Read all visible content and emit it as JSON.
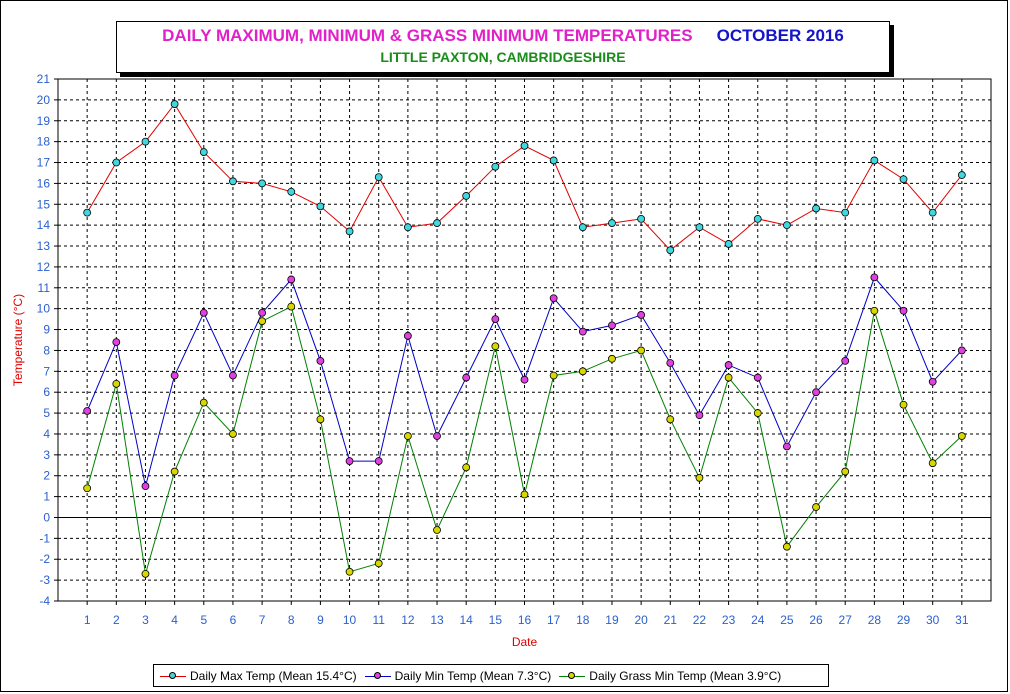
{
  "title": {
    "main": "DAILY MAXIMUM, MINIMUM & GRASS MINIMUM TEMPERATURES",
    "month": "OCTOBER 2016",
    "subtitle": "LITTLE PAXTON, CAMBRIDGESHIRE"
  },
  "colors": {
    "max_line": "#e00000",
    "max_marker": "#40d8e0",
    "min_line": "#0000c8",
    "min_marker": "#e040e0",
    "grass_line": "#008000",
    "grass_marker": "#d8d800",
    "axis_label": "#e00000",
    "tick_label": "#2a5fd0"
  },
  "chart_data": {
    "type": "line",
    "title": "DAILY MAXIMUM, MINIMUM & GRASS MINIMUM TEMPERATURES",
    "xlabel": "Date",
    "ylabel": "Temperature (°C)",
    "ylim": [
      -4,
      21
    ],
    "grid": true,
    "legend_position": "bottom",
    "x": [
      1,
      2,
      3,
      4,
      5,
      6,
      7,
      8,
      9,
      10,
      11,
      12,
      13,
      14,
      15,
      16,
      17,
      18,
      19,
      20,
      21,
      22,
      23,
      24,
      25,
      26,
      27,
      28,
      29,
      30,
      31
    ],
    "series": [
      {
        "name": "Daily Max Temp (Mean 15.4°C)",
        "values": [
          14.6,
          17.0,
          18.0,
          19.8,
          17.5,
          16.1,
          16.0,
          15.6,
          14.9,
          13.7,
          16.3,
          13.9,
          14.1,
          15.4,
          16.8,
          17.8,
          17.1,
          13.9,
          14.1,
          14.3,
          12.8,
          13.9,
          13.1,
          14.3,
          14.0,
          14.8,
          14.6,
          17.1,
          16.2,
          14.6,
          16.4
        ]
      },
      {
        "name": "Daily Min Temp (Mean 7.3°C)",
        "values": [
          5.1,
          8.4,
          1.5,
          6.8,
          9.8,
          6.8,
          9.8,
          11.4,
          7.5,
          2.7,
          2.7,
          8.7,
          3.9,
          6.7,
          9.5,
          6.6,
          10.5,
          8.9,
          9.2,
          9.7,
          7.4,
          4.9,
          7.3,
          6.7,
          3.4,
          6.0,
          7.5,
          11.5,
          9.9,
          6.5,
          8.0
        ]
      },
      {
        "name": "Daily Grass Min Temp (Mean 3.9°C)",
        "values": [
          1.4,
          6.4,
          -2.7,
          2.2,
          5.5,
          4.0,
          9.4,
          10.1,
          4.7,
          -2.6,
          -2.2,
          3.9,
          -0.6,
          2.4,
          8.2,
          1.1,
          6.8,
          7.0,
          7.6,
          8.0,
          4.7,
          1.9,
          6.7,
          5.0,
          -1.4,
          0.5,
          2.2,
          9.9,
          5.4,
          2.6,
          3.9
        ]
      }
    ]
  }
}
